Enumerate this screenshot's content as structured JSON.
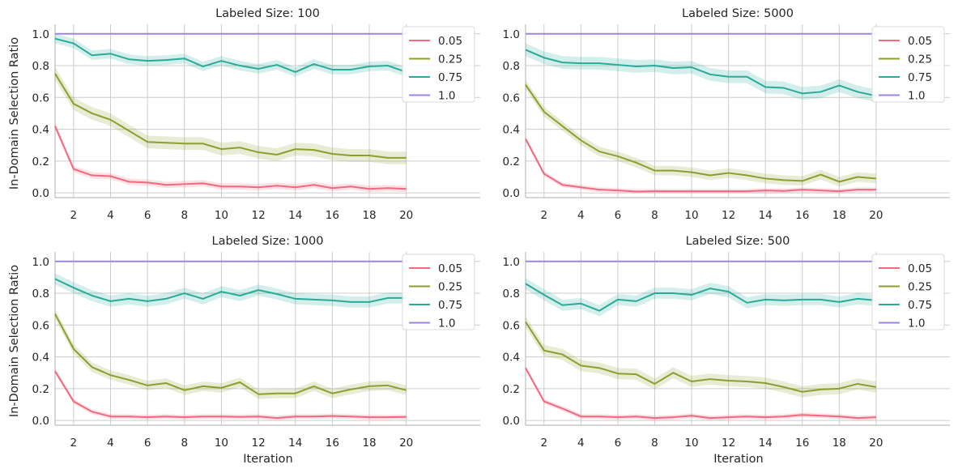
{
  "figure": {
    "ylabel": "In-Domain Selection Ratio",
    "xlabel": "Iteration"
  },
  "colors": {
    "0.05": "#f0697f",
    "0.25": "#8e9e2e",
    "0.75": "#2aaa99",
    "1.0": "#9b84e6",
    "grid": "#cccccc",
    "spine": "#bdbdbd"
  },
  "chart_data": [
    {
      "type": "line",
      "title": "Labeled Size: 100",
      "xlabel": "",
      "ylabel": "In-Domain Selection Ratio",
      "x": [
        1,
        2,
        3,
        4,
        5,
        6,
        7,
        8,
        9,
        10,
        11,
        12,
        13,
        14,
        15,
        16,
        17,
        18,
        19,
        20
      ],
      "xticks": [
        2,
        4,
        6,
        8,
        10,
        12,
        14,
        16,
        18,
        20
      ],
      "yticks": [
        0.0,
        0.2,
        0.4,
        0.6,
        0.8,
        1.0
      ],
      "xlim": [
        1,
        24
      ],
      "ylim": [
        -0.03,
        1.06
      ],
      "legend": "top-right",
      "series": [
        {
          "name": "0.05",
          "values": [
            0.42,
            0.15,
            0.11,
            0.105,
            0.07,
            0.065,
            0.05,
            0.055,
            0.06,
            0.04,
            0.04,
            0.035,
            0.045,
            0.035,
            0.05,
            0.03,
            0.04,
            0.025,
            0.03,
            0.025
          ],
          "band": 0.02
        },
        {
          "name": "0.25",
          "values": [
            0.75,
            0.56,
            0.5,
            0.46,
            0.39,
            0.32,
            0.315,
            0.31,
            0.31,
            0.275,
            0.285,
            0.255,
            0.24,
            0.275,
            0.27,
            0.245,
            0.235,
            0.235,
            0.22,
            0.22
          ],
          "band": 0.04
        },
        {
          "name": "0.75",
          "values": [
            0.97,
            0.94,
            0.865,
            0.875,
            0.84,
            0.83,
            0.835,
            0.845,
            0.795,
            0.83,
            0.8,
            0.78,
            0.805,
            0.76,
            0.81,
            0.775,
            0.775,
            0.795,
            0.8,
            0.76
          ],
          "band": 0.03
        },
        {
          "name": "1.0",
          "values": [
            1,
            1,
            1,
            1,
            1,
            1,
            1,
            1,
            1,
            1,
            1,
            1,
            1,
            1,
            1,
            1,
            1,
            1,
            1,
            1
          ],
          "band": 0
        }
      ]
    },
    {
      "type": "line",
      "title": "Labeled Size: 5000",
      "xlabel": "",
      "ylabel": "",
      "x": [
        1,
        2,
        3,
        4,
        5,
        6,
        7,
        8,
        9,
        10,
        11,
        12,
        13,
        14,
        15,
        16,
        17,
        18,
        19,
        20
      ],
      "xticks": [
        2,
        4,
        6,
        8,
        10,
        12,
        14,
        16,
        18,
        20
      ],
      "yticks": [
        0.0,
        0.2,
        0.4,
        0.6,
        0.8,
        1.0
      ],
      "xlim": [
        1,
        24
      ],
      "ylim": [
        -0.03,
        1.06
      ],
      "legend": "top-right",
      "series": [
        {
          "name": "0.05",
          "values": [
            0.34,
            0.12,
            0.05,
            0.035,
            0.02,
            0.015,
            0.008,
            0.01,
            0.01,
            0.01,
            0.01,
            0.01,
            0.01,
            0.015,
            0.012,
            0.02,
            0.015,
            0.01,
            0.02,
            0.02
          ],
          "band": 0.015
        },
        {
          "name": "0.25",
          "values": [
            0.68,
            0.51,
            0.42,
            0.33,
            0.26,
            0.23,
            0.19,
            0.14,
            0.14,
            0.13,
            0.11,
            0.125,
            0.11,
            0.09,
            0.08,
            0.075,
            0.115,
            0.07,
            0.1,
            0.09
          ],
          "band": 0.03
        },
        {
          "name": "0.75",
          "values": [
            0.9,
            0.85,
            0.82,
            0.815,
            0.815,
            0.805,
            0.795,
            0.8,
            0.785,
            0.79,
            0.745,
            0.73,
            0.73,
            0.665,
            0.66,
            0.625,
            0.635,
            0.675,
            0.635,
            0.61
          ],
          "band": 0.04
        },
        {
          "name": "1.0",
          "values": [
            1,
            1,
            1,
            1,
            1,
            1,
            1,
            1,
            1,
            1,
            1,
            1,
            1,
            1,
            1,
            1,
            1,
            1,
            1,
            1
          ],
          "band": 0
        }
      ]
    },
    {
      "type": "line",
      "title": "Labeled Size: 1000",
      "xlabel": "Iteration",
      "ylabel": "In-Domain Selection Ratio",
      "x": [
        1,
        2,
        3,
        4,
        5,
        6,
        7,
        8,
        9,
        10,
        11,
        12,
        13,
        14,
        15,
        16,
        17,
        18,
        19,
        20
      ],
      "xticks": [
        2,
        4,
        6,
        8,
        10,
        12,
        14,
        16,
        18,
        20
      ],
      "yticks": [
        0.0,
        0.2,
        0.4,
        0.6,
        0.8,
        1.0
      ],
      "xlim": [
        1,
        24
      ],
      "ylim": [
        -0.03,
        1.06
      ],
      "legend": "top-right",
      "series": [
        {
          "name": "0.05",
          "values": [
            0.31,
            0.12,
            0.055,
            0.025,
            0.025,
            0.02,
            0.025,
            0.02,
            0.025,
            0.025,
            0.022,
            0.025,
            0.015,
            0.025,
            0.025,
            0.028,
            0.025,
            0.02,
            0.02,
            0.022
          ],
          "band": 0.015
        },
        {
          "name": "0.25",
          "values": [
            0.67,
            0.45,
            0.335,
            0.285,
            0.255,
            0.22,
            0.235,
            0.19,
            0.215,
            0.205,
            0.24,
            0.165,
            0.17,
            0.17,
            0.215,
            0.17,
            0.195,
            0.215,
            0.22,
            0.19
          ],
          "band": 0.03
        },
        {
          "name": "0.75",
          "values": [
            0.89,
            0.835,
            0.785,
            0.75,
            0.765,
            0.75,
            0.765,
            0.8,
            0.765,
            0.81,
            0.785,
            0.82,
            0.795,
            0.765,
            0.76,
            0.755,
            0.745,
            0.745,
            0.77,
            0.77
          ],
          "band": 0.035
        },
        {
          "name": "1.0",
          "values": [
            1,
            1,
            1,
            1,
            1,
            1,
            1,
            1,
            1,
            1,
            1,
            1,
            1,
            1,
            1,
            1,
            1,
            1,
            1,
            1
          ],
          "band": 0
        }
      ]
    },
    {
      "type": "line",
      "title": "Labeled Size: 500",
      "xlabel": "Iteration",
      "ylabel": "",
      "x": [
        1,
        2,
        3,
        4,
        5,
        6,
        7,
        8,
        9,
        10,
        11,
        12,
        13,
        14,
        15,
        16,
        17,
        18,
        19,
        20
      ],
      "xticks": [
        2,
        4,
        6,
        8,
        10,
        12,
        14,
        16,
        18,
        20
      ],
      "yticks": [
        0.0,
        0.2,
        0.4,
        0.6,
        0.8,
        1.0
      ],
      "xlim": [
        1,
        24
      ],
      "ylim": [
        -0.03,
        1.06
      ],
      "legend": "top-right",
      "series": [
        {
          "name": "0.05",
          "values": [
            0.33,
            0.12,
            0.075,
            0.025,
            0.025,
            0.02,
            0.025,
            0.015,
            0.02,
            0.03,
            0.015,
            0.02,
            0.025,
            0.02,
            0.025,
            0.035,
            0.03,
            0.025,
            0.015,
            0.02
          ],
          "band": 0.015
        },
        {
          "name": "0.25",
          "values": [
            0.62,
            0.44,
            0.415,
            0.345,
            0.33,
            0.295,
            0.29,
            0.23,
            0.3,
            0.245,
            0.26,
            0.25,
            0.245,
            0.235,
            0.21,
            0.18,
            0.195,
            0.2,
            0.23,
            0.21
          ],
          "band": 0.035
        },
        {
          "name": "0.75",
          "values": [
            0.86,
            0.79,
            0.725,
            0.735,
            0.69,
            0.76,
            0.75,
            0.8,
            0.8,
            0.79,
            0.83,
            0.81,
            0.74,
            0.76,
            0.755,
            0.76,
            0.76,
            0.745,
            0.765,
            0.755
          ],
          "band": 0.035
        },
        {
          "name": "1.0",
          "values": [
            1,
            1,
            1,
            1,
            1,
            1,
            1,
            1,
            1,
            1,
            1,
            1,
            1,
            1,
            1,
            1,
            1,
            1,
            1,
            1
          ],
          "band": 0
        }
      ]
    }
  ]
}
